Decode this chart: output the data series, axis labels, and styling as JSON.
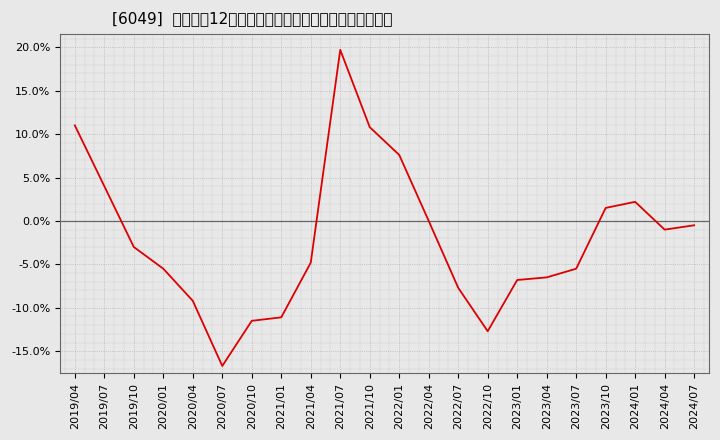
{
  "title": "[6049]  売上高の12か月移動合計の対前年同期増減率の推移",
  "line_color": "#dd0000",
  "background_color": "#e8e8e8",
  "plot_bg_color": "#e8e8e8",
  "grid_color": "#aaaaaa",
  "zero_line_color": "#666666",
  "ylim": [
    -0.175,
    0.215
  ],
  "yticks": [
    -0.15,
    -0.1,
    -0.05,
    0.0,
    0.05,
    0.1,
    0.15,
    0.2
  ],
  "dates": [
    "2019/04",
    "2019/07",
    "2019/10",
    "2020/01",
    "2020/04",
    "2020/07",
    "2020/10",
    "2021/01",
    "2021/04",
    "2021/07",
    "2021/10",
    "2022/01",
    "2022/04",
    "2022/07",
    "2022/10",
    "2023/01",
    "2023/04",
    "2023/07",
    "2023/10",
    "2024/01",
    "2024/04",
    "2024/07"
  ],
  "values": [
    0.11,
    0.04,
    -0.03,
    -0.055,
    -0.092,
    -0.167,
    -0.115,
    -0.111,
    -0.048,
    0.197,
    0.108,
    0.076,
    0.0,
    -0.077,
    -0.127,
    -0.068,
    -0.065,
    -0.055,
    0.015,
    0.022,
    -0.01,
    -0.005
  ],
  "title_fontsize": 11,
  "tick_fontsize": 8
}
